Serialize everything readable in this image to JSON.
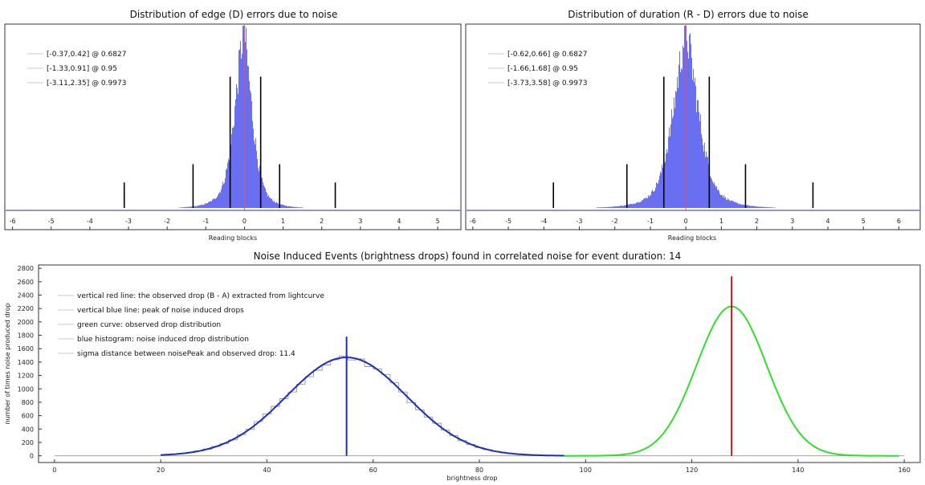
{
  "chart_data": [
    {
      "type": "bar",
      "title": "Distribution of edge (D) errors due to noise",
      "xlabel": "Reading blocks",
      "ylabel": "",
      "xlim": [
        -6.2,
        5.6
      ],
      "xticks": [
        -6,
        -5,
        -4,
        -3,
        -2,
        -1,
        0,
        1,
        2,
        3,
        4,
        5
      ],
      "histogram": {
        "color": "#5a5ef0",
        "center": -0.02,
        "sigma_left": 0.42,
        "sigma_right": 0.39
      },
      "center_line": {
        "x": 0,
        "color": "#e0506a"
      },
      "interval_lines": [
        {
          "x": -0.37,
          "height": 0.72
        },
        {
          "x": 0.42,
          "height": 0.72
        },
        {
          "x": -1.33,
          "height": 0.24
        },
        {
          "x": 0.91,
          "height": 0.24
        },
        {
          "x": -3.11,
          "height": 0.14
        },
        {
          "x": 2.35,
          "height": 0.14
        }
      ],
      "legend": [
        "[-0.37,0.42] @ 0.6827",
        "[-1.33,0.91] @ 0.95",
        "[-3.11,2.35] @ 0.9973"
      ],
      "legend_placement": "top-left",
      "grid": false
    },
    {
      "type": "bar",
      "title": "Distribution of duration (R - D) errors due to noise",
      "xlabel": "Reading blocks",
      "ylabel": "",
      "xlim": [
        -6.2,
        6.6
      ],
      "xticks": [
        -6,
        -5,
        -4,
        -3,
        -2,
        -1,
        0,
        1,
        2,
        3,
        4,
        5,
        6
      ],
      "histogram": {
        "color": "#5a5ef0",
        "center": 0.0,
        "sigma_left": 0.64,
        "sigma_right": 0.64
      },
      "center_line": {
        "x": 0,
        "color": "#e0506a"
      },
      "interval_lines": [
        {
          "x": -0.62,
          "height": 0.72
        },
        {
          "x": 0.66,
          "height": 0.72
        },
        {
          "x": -1.66,
          "height": 0.24
        },
        {
          "x": 1.68,
          "height": 0.24
        },
        {
          "x": -3.73,
          "height": 0.14
        },
        {
          "x": 3.58,
          "height": 0.14
        }
      ],
      "legend": [
        "[-0.62,0.66] @ 0.6827",
        "[-1.66,1.68] @ 0.95",
        "[-3.73,3.58] @ 0.9973"
      ],
      "legend_placement": "top-left",
      "grid": false
    },
    {
      "type": "line",
      "title": "Noise Induced Events (brightness drops) found in correlated noise for event duration: 14",
      "xlabel": "brightness drop",
      "ylabel": "number of times noise produced drop",
      "xlim": [
        -3,
        163
      ],
      "ylim": [
        -100,
        2850
      ],
      "xticks": [
        0,
        20,
        40,
        60,
        80,
        100,
        120,
        140,
        160
      ],
      "yticks": [
        0,
        200,
        400,
        600,
        800,
        1000,
        1200,
        1400,
        1600,
        1800,
        2000,
        2200,
        2400,
        2600,
        2800
      ],
      "series": [
        {
          "kind": "noise_histogram",
          "color": "#8a8a8a",
          "mean": 55,
          "sigma": 11.3,
          "peak": 1470,
          "bin": 1.6,
          "xmin": 20,
          "xmax": 96
        },
        {
          "kind": "noise_fit",
          "color": "#1c2fb8",
          "mean": 55,
          "sigma": 11.3,
          "peak": 1470,
          "xmin": 20,
          "xmax": 96
        },
        {
          "kind": "observed_drop_distribution",
          "color": "#2ee02a",
          "mean": 127.5,
          "sigma": 6.6,
          "peak": 2230,
          "xmin": 96,
          "xmax": 159
        }
      ],
      "baseline": {
        "value": 0,
        "color": "#a0a0a0",
        "xmin": 0,
        "xmax": 160
      },
      "vlines": [
        {
          "x": 55,
          "y2": 1780,
          "color": "#1c2fb8"
        },
        {
          "x": 127.5,
          "y2": 2680,
          "color": "#b01818"
        }
      ],
      "legend": [
        "vertical red line: the observed drop (B - A) extracted from lightcurve",
        "vertical blue line: peak of noise induced drops",
        "green curve: observed drop distribution",
        "blue histogram: noise induced drop distribution",
        "sigma distance between noisePeak and observed drop: 11.4"
      ],
      "legend_placement": "top-left",
      "grid": false
    }
  ]
}
